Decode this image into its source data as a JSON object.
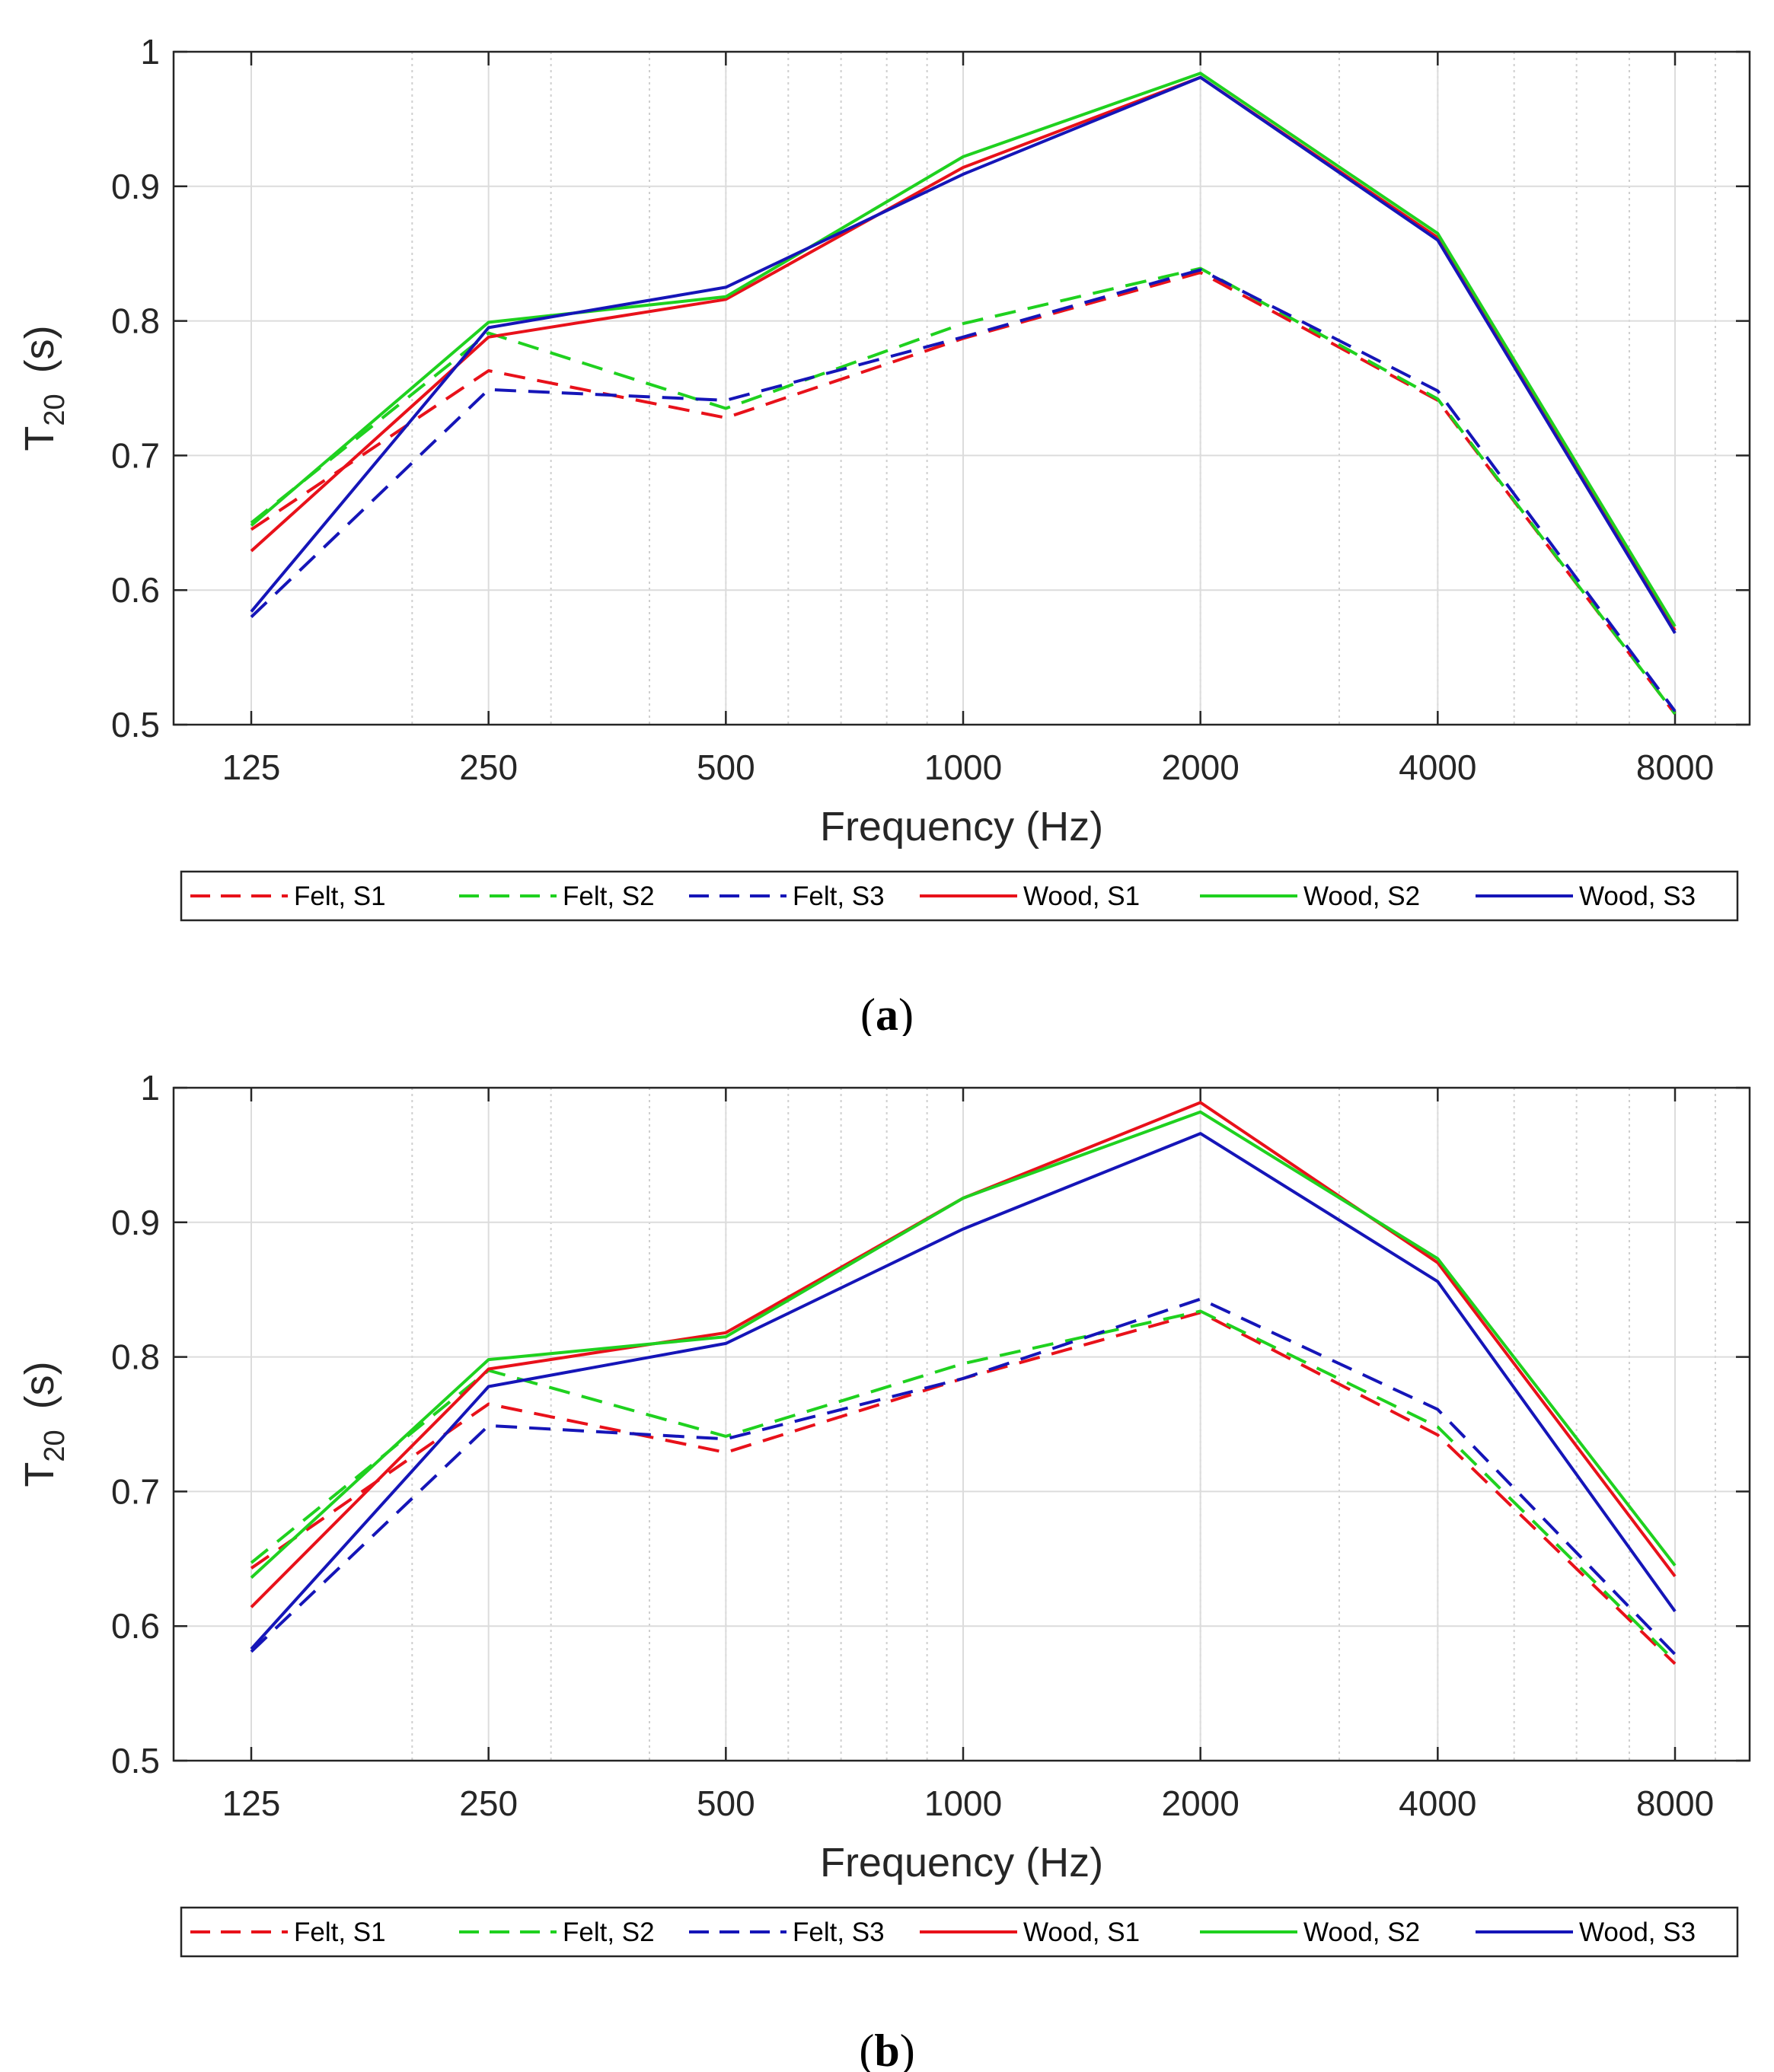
{
  "chart_data": [
    {
      "id": "a",
      "type": "line",
      "caption_letter": "a",
      "x_scale": "log2",
      "x": [
        125,
        250,
        500,
        1000,
        2000,
        4000,
        8000
      ],
      "x_tick_labels": [
        "125",
        "250",
        "500",
        "1000",
        "2000",
        "4000",
        "8000"
      ],
      "xlabel": "Frequency (Hz)",
      "ylabel_main": "T",
      "ylabel_sub": "20",
      "ylabel_unit": "(s)",
      "ylim": [
        0.5,
        1.0
      ],
      "y_ticks": [
        0.5,
        0.6,
        0.7,
        0.8,
        0.9,
        1.0
      ],
      "y_tick_labels": [
        "0.5",
        "0.6",
        "0.7",
        "0.8",
        "0.9",
        "1"
      ],
      "grid": true,
      "legend_position": "bottom",
      "series": [
        {
          "name": "Felt, S1",
          "color": "#e8111a",
          "dashed": true,
          "values": [
            0.645,
            0.763,
            0.728,
            0.787,
            0.836,
            0.741,
            0.508
          ]
        },
        {
          "name": "Felt, S2",
          "color": "#1fd11f",
          "dashed": true,
          "values": [
            0.65,
            0.791,
            0.735,
            0.798,
            0.839,
            0.742,
            0.508
          ]
        },
        {
          "name": "Felt, S3",
          "color": "#1515b8",
          "dashed": true,
          "values": [
            0.58,
            0.749,
            0.741,
            0.788,
            0.838,
            0.748,
            0.51
          ]
        },
        {
          "name": "Wood, S1",
          "color": "#e8111a",
          "dashed": false,
          "values": [
            0.629,
            0.788,
            0.816,
            0.914,
            0.981,
            0.862,
            0.57
          ]
        },
        {
          "name": "Wood, S2",
          "color": "#1fd11f",
          "dashed": false,
          "values": [
            0.648,
            0.799,
            0.818,
            0.922,
            0.984,
            0.865,
            0.573
          ]
        },
        {
          "name": "Wood, S3",
          "color": "#1515b8",
          "dashed": false,
          "values": [
            0.584,
            0.795,
            0.825,
            0.909,
            0.981,
            0.86,
            0.568
          ]
        }
      ]
    },
    {
      "id": "b",
      "type": "line",
      "caption_letter": "b",
      "x_scale": "log2",
      "x": [
        125,
        250,
        500,
        1000,
        2000,
        4000,
        8000
      ],
      "x_tick_labels": [
        "125",
        "250",
        "500",
        "1000",
        "2000",
        "4000",
        "8000"
      ],
      "xlabel": "Frequency (Hz)",
      "ylabel_main": "T",
      "ylabel_sub": "20",
      "ylabel_unit": "(s)",
      "ylim": [
        0.5,
        1.0
      ],
      "y_ticks": [
        0.5,
        0.6,
        0.7,
        0.8,
        0.9,
        1.0
      ],
      "y_tick_labels": [
        "0.5",
        "0.6",
        "0.7",
        "0.8",
        "0.9",
        "1"
      ],
      "grid": true,
      "legend_position": "bottom",
      "series": [
        {
          "name": "Felt, S1",
          "color": "#e8111a",
          "dashed": true,
          "values": [
            0.643,
            0.765,
            0.729,
            0.784,
            0.833,
            0.742,
            0.572
          ]
        },
        {
          "name": "Felt, S2",
          "color": "#1fd11f",
          "dashed": true,
          "values": [
            0.647,
            0.79,
            0.741,
            0.795,
            0.834,
            0.748,
            0.574
          ]
        },
        {
          "name": "Felt, S3",
          "color": "#1515b8",
          "dashed": true,
          "values": [
            0.581,
            0.749,
            0.739,
            0.784,
            0.843,
            0.761,
            0.579
          ]
        },
        {
          "name": "Wood, S1",
          "color": "#e8111a",
          "dashed": false,
          "values": [
            0.614,
            0.791,
            0.818,
            0.918,
            0.989,
            0.87,
            0.637
          ]
        },
        {
          "name": "Wood, S2",
          "color": "#1fd11f",
          "dashed": false,
          "values": [
            0.636,
            0.798,
            0.815,
            0.918,
            0.982,
            0.873,
            0.645
          ]
        },
        {
          "name": "Wood, S3",
          "color": "#1515b8",
          "dashed": false,
          "values": [
            0.583,
            0.778,
            0.81,
            0.895,
            0.966,
            0.856,
            0.611
          ]
        }
      ]
    }
  ]
}
